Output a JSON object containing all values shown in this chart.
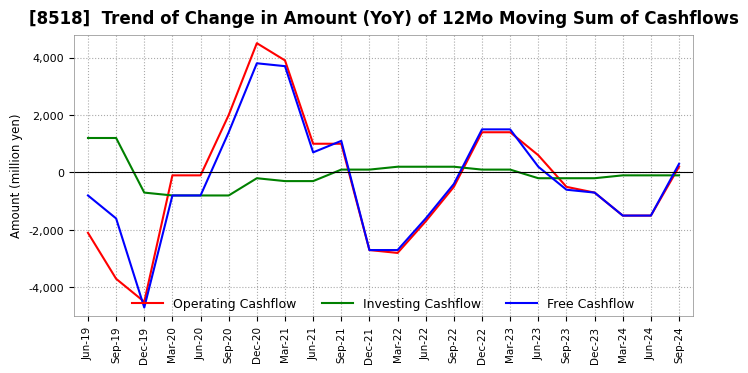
{
  "title": "[8518]  Trend of Change in Amount (YoY) of 12Mo Moving Sum of Cashflows",
  "ylabel": "Amount (million yen)",
  "ylim": [
    -5000,
    4800
  ],
  "yticks": [
    -4000,
    -2000,
    0,
    2000,
    4000
  ],
  "x_labels": [
    "Jun-19",
    "Sep-19",
    "Dec-19",
    "Mar-20",
    "Jun-20",
    "Sep-20",
    "Dec-20",
    "Mar-21",
    "Jun-21",
    "Sep-21",
    "Dec-21",
    "Mar-22",
    "Jun-22",
    "Sep-22",
    "Dec-22",
    "Mar-23",
    "Jun-23",
    "Sep-23",
    "Dec-23",
    "Mar-24",
    "Jun-24",
    "Sep-24"
  ],
  "operating": [
    -2100,
    -3700,
    -4500,
    -100,
    -100,
    2000,
    4500,
    3900,
    1000,
    1000,
    -2700,
    -2800,
    -1700,
    -500,
    1400,
    1400,
    600,
    -500,
    -700,
    -1500,
    -1500,
    200
  ],
  "investing": [
    1200,
    1200,
    -700,
    -800,
    -800,
    -800,
    -200,
    -300,
    -300,
    100,
    100,
    200,
    200,
    200,
    100,
    100,
    -200,
    -200,
    -200,
    -100,
    -100,
    -100
  ],
  "free": [
    -800,
    -1600,
    -4700,
    -800,
    -800,
    1400,
    3800,
    3700,
    700,
    1100,
    -2700,
    -2700,
    -1600,
    -400,
    1500,
    1500,
    200,
    -600,
    -700,
    -1500,
    -1500,
    300
  ],
  "colors": {
    "operating": "#ff0000",
    "investing": "#008000",
    "free": "#0000ff"
  },
  "background_color": "#ffffff",
  "grid_color": "#aaaaaa",
  "title_fontsize": 12,
  "legend_labels": [
    "Operating Cashflow",
    "Investing Cashflow",
    "Free Cashflow"
  ]
}
